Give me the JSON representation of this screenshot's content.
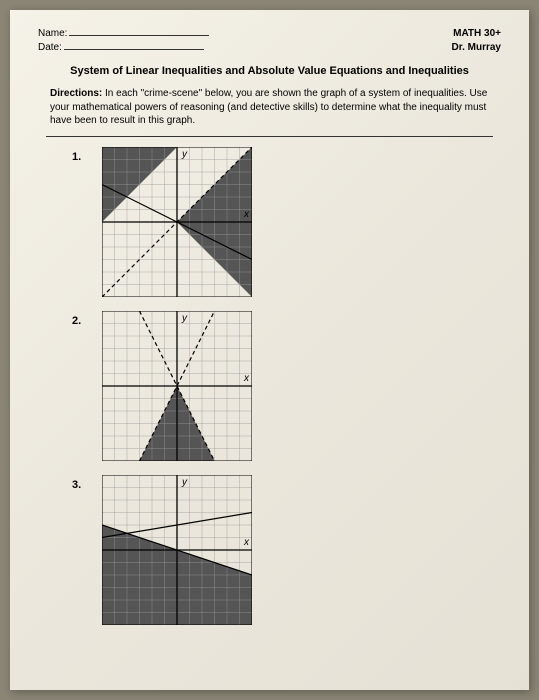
{
  "header": {
    "name_label": "Name:",
    "date_label": "Date:",
    "course": "MATH 30+",
    "instructor": "Dr. Murray"
  },
  "title": "System of Linear Inequalities and Absolute Value Equations and Inequalities",
  "directions": {
    "label": "Directions:",
    "text": "In each \"crime-scene\" below, you are shown the graph of a system of inequalities. Use your mathematical powers of reasoning (and detective skills) to determine what the inequality must have been to result in this graph."
  },
  "problems": [
    {
      "num": "1.",
      "chart": {
        "type": "inequality-graph",
        "xlim": [
          -6,
          6
        ],
        "ylim": [
          -6,
          6
        ],
        "axis_labels": {
          "x": "x",
          "y": "y"
        },
        "tick_step": 1,
        "grid_color": "#999",
        "axis_color": "#000",
        "shade_color": "#555",
        "shaded_regions": [
          {
            "points": [
              [
                -6,
                6
              ],
              [
                0,
                6
              ],
              [
                -6,
                0
              ]
            ]
          },
          {
            "points": [
              [
                0,
                0
              ],
              [
                6,
                -6
              ],
              [
                6,
                6
              ]
            ]
          }
        ],
        "lines": [
          {
            "from": [
              -6,
              -6
            ],
            "to": [
              6,
              6
            ],
            "dash": true
          },
          {
            "from": [
              -6,
              3
            ],
            "to": [
              6,
              -3
            ],
            "dash": false
          }
        ]
      }
    },
    {
      "num": "2.",
      "chart": {
        "type": "inequality-graph",
        "xlim": [
          -6,
          6
        ],
        "ylim": [
          -6,
          6
        ],
        "axis_labels": {
          "x": "x",
          "y": "y"
        },
        "tick_step": 1,
        "grid_color": "#999",
        "axis_color": "#000",
        "shade_color": "#555",
        "shaded_regions": [
          {
            "points": [
              [
                -3,
                -6
              ],
              [
                0,
                0
              ],
              [
                3,
                -6
              ]
            ]
          }
        ],
        "lines": [
          {
            "from": [
              -3,
              6
            ],
            "to": [
              3,
              -6
            ],
            "dash": true
          },
          {
            "from": [
              -3,
              -6
            ],
            "to": [
              3,
              6
            ],
            "dash": true
          }
        ]
      }
    },
    {
      "num": "3.",
      "chart": {
        "type": "inequality-graph",
        "xlim": [
          -6,
          6
        ],
        "ylim": [
          -6,
          6
        ],
        "axis_labels": {
          "x": "x",
          "y": "y"
        },
        "tick_step": 1,
        "grid_color": "#999",
        "axis_color": "#000",
        "shade_color": "#555",
        "shaded_regions": [
          {
            "points": [
              [
                -6,
                6
              ],
              [
                -6,
                -6
              ],
              [
                6,
                -6
              ],
              [
                6,
                -2
              ],
              [
                -6,
                2
              ]
            ]
          }
        ],
        "lines": [
          {
            "from": [
              -6,
              1
            ],
            "to": [
              6,
              3
            ],
            "dash": false
          },
          {
            "from": [
              -6,
              2
            ],
            "to": [
              6,
              -2
            ],
            "dash": false
          }
        ]
      }
    }
  ]
}
